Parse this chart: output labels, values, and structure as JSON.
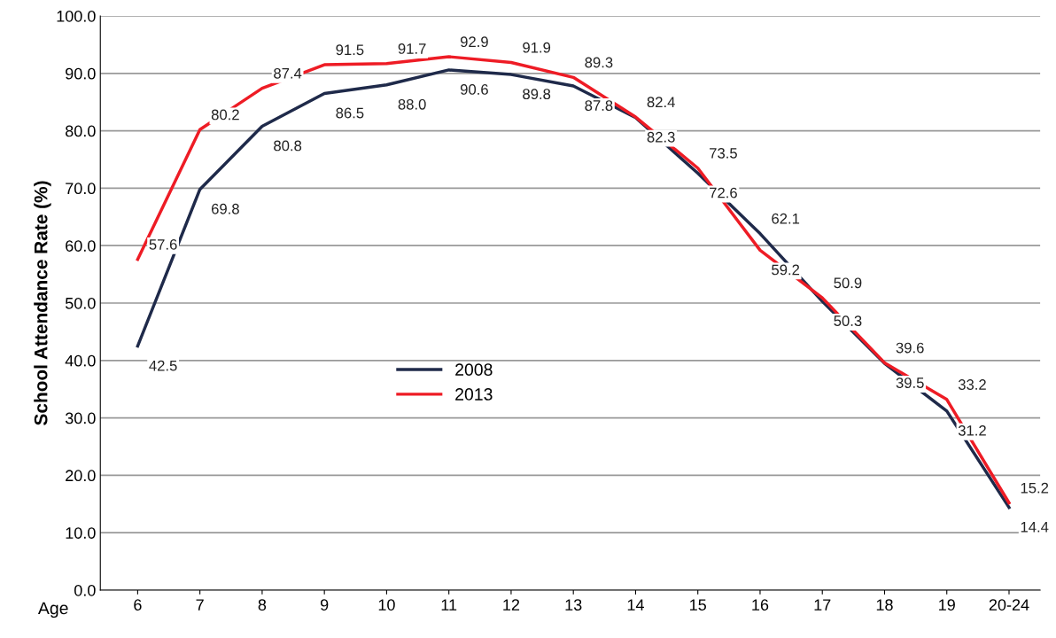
{
  "chart_data": {
    "type": "line",
    "xlabel": "Age",
    "ylabel": "School Attendance Rate (%)",
    "categories": [
      "6",
      "7",
      "8",
      "9",
      "10",
      "11",
      "12",
      "13",
      "14",
      "15",
      "16",
      "17",
      "18",
      "19",
      "20-24"
    ],
    "series": [
      {
        "name": "2008",
        "color": "#1f2a4a",
        "values": [
          42.5,
          69.8,
          80.8,
          86.5,
          88.0,
          90.6,
          89.8,
          87.8,
          82.3,
          72.6,
          62.1,
          50.3,
          39.5,
          31.2,
          14.4
        ],
        "value_labels": [
          "42.5",
          "69.8",
          "80.8",
          "86.5",
          "88.0",
          "90.6",
          "89.8",
          "87.8",
          "82.3",
          "72.6",
          "62.1",
          "50.3",
          "39.5",
          "31.2",
          "14.4"
        ]
      },
      {
        "name": "2013",
        "color": "#ee1c25",
        "values": [
          57.6,
          80.2,
          87.4,
          91.5,
          91.7,
          92.9,
          91.9,
          89.3,
          82.4,
          73.5,
          59.2,
          50.9,
          39.6,
          33.2,
          15.2
        ],
        "value_labels": [
          "57.6",
          "80.2",
          "87.4",
          "91.5",
          "91.7",
          "92.9",
          "91.9",
          "89.3",
          "82.4",
          "73.5",
          "59.2",
          "50.9",
          "39.6",
          "33.2",
          "15.2"
        ]
      }
    ],
    "ylim": [
      0,
      100
    ],
    "yticks": [
      {
        "value": 0,
        "label": "0.0"
      },
      {
        "value": 10,
        "label": "10.0"
      },
      {
        "value": 20,
        "label": "20.0"
      },
      {
        "value": 30,
        "label": "30.0"
      },
      {
        "value": 40,
        "label": "40.0"
      },
      {
        "value": 50,
        "label": "50.0"
      },
      {
        "value": 60,
        "label": "60.0"
      },
      {
        "value": 70,
        "label": "70.0"
      },
      {
        "value": 80,
        "label": "80.0"
      },
      {
        "value": 90,
        "label": "90.0"
      },
      {
        "value": 100,
        "label": "100.0"
      }
    ],
    "grid": "y",
    "legend": "center left",
    "marker": "none",
    "line_style": "solid"
  }
}
